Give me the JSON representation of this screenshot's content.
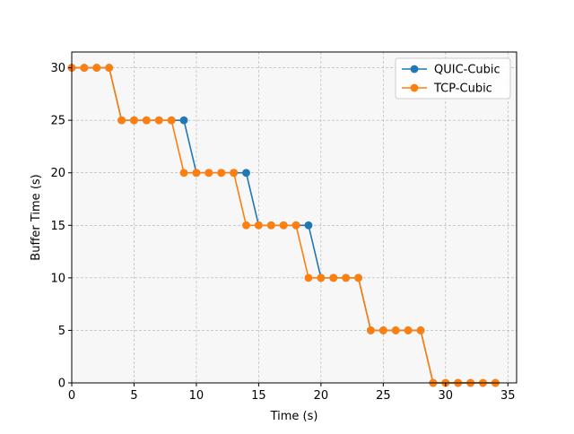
{
  "chart_data": {
    "type": "line",
    "title": "",
    "xlabel": "Time (s)",
    "ylabel": "Buffer Time (s)",
    "xlim": [
      0,
      35.7
    ],
    "ylim": [
      0,
      31.5
    ],
    "xticks": [
      0,
      5,
      10,
      15,
      20,
      25,
      30,
      35
    ],
    "yticks": [
      0,
      5,
      10,
      15,
      20,
      25,
      30
    ],
    "grid": true,
    "legend_position": "top-right",
    "background": "#f7f7f7",
    "series": [
      {
        "name": "QUIC-Cubic",
        "color": "#1f77b4",
        "x": [
          0,
          1,
          2,
          3,
          4,
          5,
          6,
          7,
          8,
          9,
          10,
          11,
          12,
          13,
          14,
          15,
          16,
          17,
          18,
          19,
          20,
          21,
          22,
          23,
          24,
          25,
          26,
          27,
          28,
          29,
          30,
          31,
          32,
          33,
          34
        ],
        "y": [
          30,
          30,
          30,
          30,
          25,
          25,
          25,
          25,
          25,
          25,
          20,
          20,
          20,
          20,
          20,
          15,
          15,
          15,
          15,
          15,
          10,
          10,
          10,
          10,
          5,
          5,
          5,
          5,
          5,
          0,
          0,
          0,
          0,
          0,
          0
        ]
      },
      {
        "name": "TCP-Cubic",
        "color": "#ff7f0e",
        "x": [
          0,
          1,
          2,
          3,
          4,
          5,
          6,
          7,
          8,
          9,
          10,
          11,
          12,
          13,
          14,
          15,
          16,
          17,
          18,
          19,
          20,
          21,
          22,
          23,
          24,
          25,
          26,
          27,
          28,
          29,
          30,
          31,
          32,
          33,
          34
        ],
        "y": [
          30,
          30,
          30,
          30,
          25,
          25,
          25,
          25,
          25,
          20,
          20,
          20,
          20,
          20,
          15,
          15,
          15,
          15,
          15,
          10,
          10,
          10,
          10,
          10,
          5,
          5,
          5,
          5,
          5,
          0,
          0,
          0,
          0,
          0,
          0
        ]
      }
    ]
  }
}
